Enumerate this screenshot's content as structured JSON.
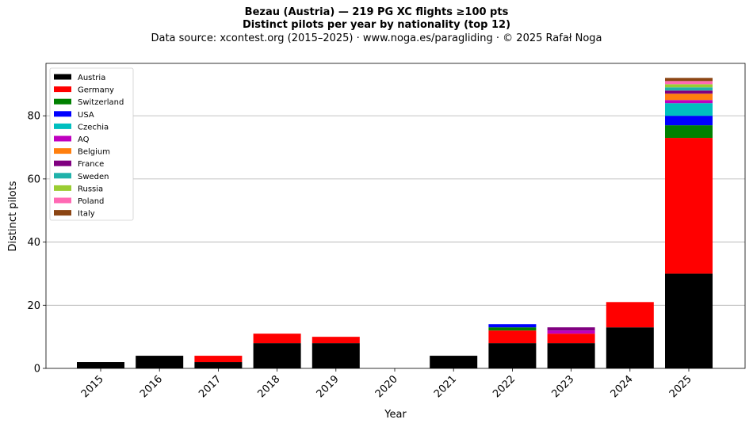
{
  "titles": {
    "line1": "Bezau (Austria)  —  219 PG XC flights ≥100 pts",
    "line2": "Distinct pilots per year by nationality (top 12)",
    "line3": "Data source: xcontest.org (2015–2025)  ·  www.noga.es/paragliding  ·  © 2025 Rafał Noga"
  },
  "chart_data": {
    "type": "bar",
    "stacked": true,
    "title": "Bezau (Austria)  —  219 PG XC flights ≥100 pts",
    "subtitle": "Distinct pilots per year by nationality (top 12)",
    "xlabel": "Year",
    "ylabel": "Distinct pilots",
    "ylim": [
      0,
      96.6
    ],
    "yticks": [
      0,
      20,
      40,
      60,
      80
    ],
    "grid": "horizontal",
    "legend_position": "top-left",
    "categories": [
      "2015",
      "2016",
      "2017",
      "2018",
      "2019",
      "2020",
      "2021",
      "2022",
      "2023",
      "2024",
      "2025"
    ],
    "series": [
      {
        "name": "Austria",
        "color": "#000000",
        "values": [
          2,
          4,
          2,
          8,
          8,
          0,
          4,
          8,
          8,
          13,
          30
        ]
      },
      {
        "name": "Germany",
        "color": "#ff0000",
        "values": [
          0,
          0,
          2,
          3,
          2,
          0,
          0,
          4,
          3,
          8,
          43
        ]
      },
      {
        "name": "Switzerland",
        "color": "#008000",
        "values": [
          0,
          0,
          0,
          0,
          0,
          0,
          0,
          1,
          0,
          0,
          4
        ]
      },
      {
        "name": "USA",
        "color": "#0000ff",
        "values": [
          0,
          0,
          0,
          0,
          0,
          0,
          0,
          1,
          0,
          0,
          3
        ]
      },
      {
        "name": "Czechia",
        "color": "#00bfbf",
        "values": [
          0,
          0,
          0,
          0,
          0,
          0,
          0,
          0,
          0,
          0,
          4
        ]
      },
      {
        "name": "AQ",
        "color": "#bf00bf",
        "values": [
          0,
          0,
          0,
          0,
          0,
          0,
          0,
          0,
          1,
          0,
          1
        ]
      },
      {
        "name": "Belgium",
        "color": "#ff7f0e",
        "values": [
          0,
          0,
          0,
          0,
          0,
          0,
          0,
          0,
          0,
          0,
          2
        ]
      },
      {
        "name": "France",
        "color": "#800080",
        "values": [
          0,
          0,
          0,
          0,
          0,
          0,
          0,
          0,
          1,
          0,
          1
        ]
      },
      {
        "name": "Sweden",
        "color": "#20b2aa",
        "values": [
          0,
          0,
          0,
          0,
          0,
          0,
          0,
          0,
          0,
          0,
          1
        ]
      },
      {
        "name": "Russia",
        "color": "#9acd32",
        "values": [
          0,
          0,
          0,
          0,
          0,
          0,
          0,
          0,
          0,
          0,
          1
        ]
      },
      {
        "name": "Poland",
        "color": "#ff69b4",
        "values": [
          0,
          0,
          0,
          0,
          0,
          0,
          0,
          0,
          0,
          0,
          1
        ]
      },
      {
        "name": "Italy",
        "color": "#8b4513",
        "values": [
          0,
          0,
          0,
          0,
          0,
          0,
          0,
          0,
          0,
          0,
          1
        ]
      }
    ]
  }
}
